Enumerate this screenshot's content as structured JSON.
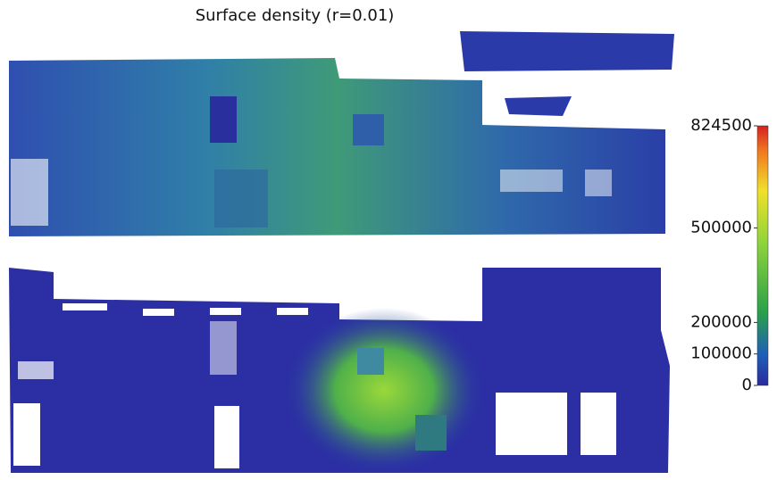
{
  "title": "Surface density (r=0.01)",
  "colorbar": {
    "range": [
      0,
      824500
    ],
    "ticks": [
      0,
      100000,
      200000,
      500000,
      824500
    ]
  }
}
